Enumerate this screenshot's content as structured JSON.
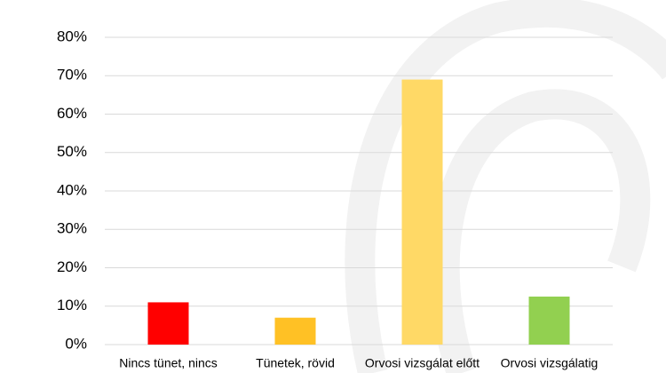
{
  "chart_data": {
    "type": "bar",
    "categories": [
      "Nincs tünet, nincs",
      "Tünetek, rövid",
      "Orvosi vizsgálat előtt",
      "Orvosi vizsgálatig"
    ],
    "values": [
      11,
      7,
      69,
      12.5
    ],
    "colors": [
      "#ff0000",
      "#ffc125",
      "#ffd966",
      "#92d050"
    ],
    "ylim": [
      0,
      80
    ],
    "yticks": [
      {
        "value": 0,
        "label": "0%"
      },
      {
        "value": 10,
        "label": "10%"
      },
      {
        "value": 20,
        "label": "20%"
      },
      {
        "value": 30,
        "label": "30%"
      },
      {
        "value": 40,
        "label": "40%"
      },
      {
        "value": 50,
        "label": "50%"
      },
      {
        "value": 60,
        "label": "60%"
      },
      {
        "value": 70,
        "label": "70%"
      },
      {
        "value": 80,
        "label": "80%"
      }
    ],
    "grid": true
  }
}
